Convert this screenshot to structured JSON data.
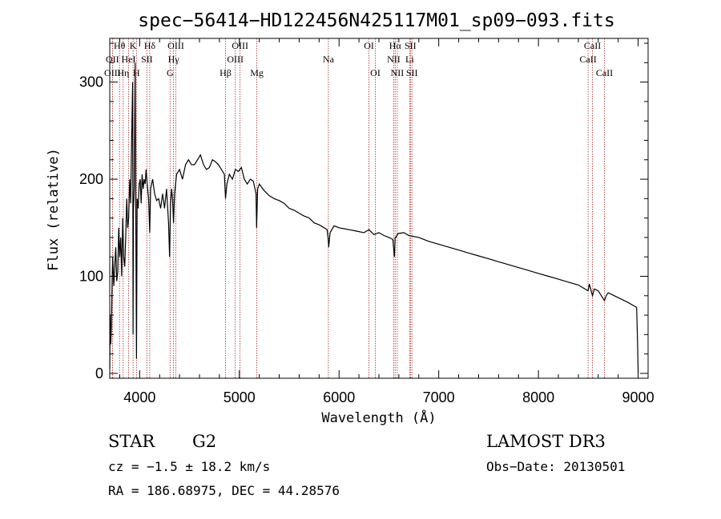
{
  "chart_data": {
    "type": "line",
    "title": "spec−56414−HD122456N425117M01_sp09−093.fits",
    "xlabel": "Wavelength (Å)",
    "ylabel": "Flux (relative)",
    "xlim": [
      3700,
      9100
    ],
    "ylim": [
      -5,
      345
    ],
    "x_ticks": [
      4000,
      5000,
      6000,
      7000,
      8000,
      9000
    ],
    "x_tick_labels": [
      "4000",
      "5000",
      "6000",
      "7000",
      "8000",
      "9000"
    ],
    "y_ticks": [
      0,
      100,
      200,
      300
    ],
    "y_tick_labels": [
      "0",
      "100",
      "200",
      "300"
    ],
    "grid": false,
    "series": [
      {
        "name": "spectrum",
        "x": [
          3700,
          3705,
          3710,
          3715,
          3720,
          3725,
          3730,
          3740,
          3750,
          3760,
          3770,
          3780,
          3790,
          3800,
          3810,
          3820,
          3830,
          3840,
          3850,
          3860,
          3870,
          3880,
          3890,
          3900,
          3910,
          3920,
          3930,
          3934,
          3938,
          3945,
          3955,
          3962,
          3968,
          3975,
          3985,
          3995,
          4005,
          4015,
          4025,
          4035,
          4045,
          4055,
          4065,
          4075,
          4090,
          4101,
          4110,
          4130,
          4150,
          4170,
          4190,
          4210,
          4230,
          4250,
          4270,
          4290,
          4300,
          4310,
          4320,
          4330,
          4340,
          4350,
          4370,
          4400,
          4430,
          4460,
          4490,
          4520,
          4550,
          4580,
          4610,
          4640,
          4670,
          4700,
          4730,
          4760,
          4790,
          4820,
          4850,
          4861,
          4875,
          4900,
          4930,
          4960,
          4990,
          5020,
          5050,
          5080,
          5110,
          5140,
          5167,
          5173,
          5183,
          5200,
          5250,
          5300,
          5350,
          5400,
          5450,
          5500,
          5550,
          5600,
          5650,
          5700,
          5750,
          5800,
          5850,
          5880,
          5890,
          5896,
          5910,
          5950,
          6000,
          6050,
          6100,
          6150,
          6200,
          6250,
          6300,
          6350,
          6400,
          6450,
          6500,
          6540,
          6555,
          6563,
          6571,
          6590,
          6650,
          6700,
          6800,
          6900,
          7000,
          7100,
          7200,
          7300,
          7400,
          7500,
          7600,
          7700,
          7800,
          7900,
          8000,
          8100,
          8200,
          8300,
          8400,
          8498,
          8510,
          8542,
          8560,
          8600,
          8662,
          8680,
          8700,
          8800,
          8900,
          8950,
          8985,
          8995,
          9000
        ],
        "values": [
          5,
          60,
          30,
          45,
          70,
          100,
          120,
          90,
          110,
          130,
          95,
          105,
          150,
          120,
          140,
          100,
          160,
          120,
          110,
          140,
          180,
          150,
          160,
          200,
          175,
          245,
          300,
          40,
          170,
          190,
          320,
          150,
          15,
          180,
          170,
          195,
          200,
          175,
          205,
          190,
          200,
          195,
          210,
          195,
          180,
          145,
          190,
          200,
          185,
          178,
          180,
          170,
          185,
          170,
          190,
          155,
          120,
          175,
          190,
          180,
          155,
          185,
          205,
          210,
          200,
          215,
          220,
          215,
          215,
          220,
          225,
          215,
          210,
          212,
          220,
          218,
          215,
          210,
          205,
          180,
          195,
          205,
          200,
          210,
          208,
          212,
          200,
          195,
          200,
          198,
          185,
          150,
          190,
          195,
          188,
          183,
          180,
          178,
          175,
          170,
          168,
          165,
          162,
          160,
          155,
          153,
          150,
          148,
          140,
          130,
          145,
          152,
          150,
          149,
          148,
          147,
          146,
          145,
          148,
          143,
          145,
          142,
          140,
          138,
          120,
          140,
          140,
          144,
          145,
          142,
          140,
          136,
          133,
          130,
          127,
          124,
          121,
          118,
          115,
          112,
          109,
          106,
          103,
          100,
          97,
          94,
          91,
          85,
          92,
          80,
          87,
          85,
          75,
          80,
          83,
          78,
          73,
          70,
          68,
          30,
          0
        ]
      }
    ],
    "spectral_lines": [
      {
        "label": "Hθ",
        "x": 3798,
        "row": 1
      },
      {
        "label": "OII",
        "x": 3727,
        "row": 2
      },
      {
        "label": "OIII",
        "x": 3727,
        "row": 3
      },
      {
        "label": "K",
        "x": 3934,
        "row": 1
      },
      {
        "label": "Hη",
        "x": 3835,
        "row": 3
      },
      {
        "label": "HeI",
        "x": 3889,
        "row": 2
      },
      {
        "label": "H",
        "x": 3968,
        "row": 3
      },
      {
        "label": "SII",
        "x": 4072,
        "row": 2
      },
      {
        "label": "Hδ",
        "x": 4101,
        "row": 1
      },
      {
        "label": "OIII",
        "x": 4363,
        "row": 1
      },
      {
        "label": "Hγ",
        "x": 4340,
        "row": 2
      },
      {
        "label": "G",
        "x": 4305,
        "row": 3
      },
      {
        "label": "OIII",
        "x": 5007,
        "row": 1
      },
      {
        "label": "OIII",
        "x": 4959,
        "row": 2
      },
      {
        "label": "Hβ",
        "x": 4861,
        "row": 3
      },
      {
        "label": "Mg",
        "x": 5175,
        "row": 3
      },
      {
        "label": "Na",
        "x": 5893,
        "row": 2
      },
      {
        "label": "OI",
        "x": 6300,
        "row": 1
      },
      {
        "label": "OI",
        "x": 6364,
        "row": 3
      },
      {
        "label": "Hα",
        "x": 6563,
        "row": 1
      },
      {
        "label": "NII",
        "x": 6548,
        "row": 2
      },
      {
        "label": "NII",
        "x": 6584,
        "row": 3
      },
      {
        "label": "SII",
        "x": 6716,
        "row": 1
      },
      {
        "label": "Li",
        "x": 6708,
        "row": 2
      },
      {
        "label": "SII",
        "x": 6731,
        "row": 3
      },
      {
        "label": "CaII",
        "x": 8542,
        "row": 1
      },
      {
        "label": "CaII",
        "x": 8498,
        "row": 2
      },
      {
        "label": "CaII",
        "x": 8662,
        "row": 3
      }
    ],
    "annotations": {
      "object_class": "STAR",
      "subclass": "G2",
      "redshift": "cz = −1.5 ± 18.2 km/s",
      "coordinates": "RA = 186.68975, DEC =  44.28576",
      "survey": "LAMOST DR3",
      "obs_date": "Obs−Date: 20130501"
    },
    "colors": {
      "spectrum": "#000000",
      "line_markers": "#b22222",
      "axes": "#000000"
    }
  }
}
